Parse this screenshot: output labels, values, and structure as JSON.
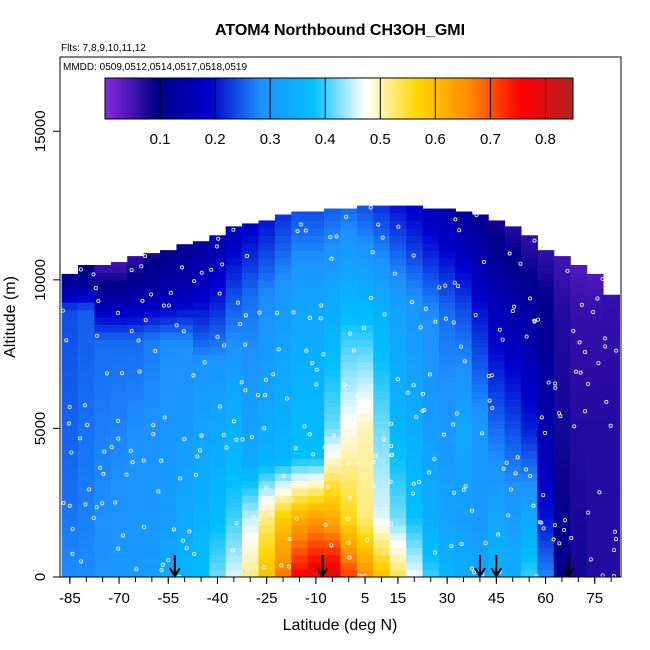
{
  "chart_data": {
    "type": "heatmap",
    "title": "ATOM4 Northbound CH3OH_GMI",
    "annotations": {
      "flights": "Flts: 7,8,9,10,11,12",
      "dates": "MMDD: 0509,0512,0514,0517,0518,0519"
    },
    "xlabel": "Latitude (deg N)",
    "ylabel": "Altitude (m)",
    "xlim": [
      -88,
      83
    ],
    "ylim": [
      0,
      17500
    ],
    "x_ticks": [
      -85,
      -70,
      -55,
      -40,
      -25,
      -10,
      5,
      15,
      30,
      45,
      60,
      75
    ],
    "y_ticks": [
      0,
      5000,
      10000,
      15000
    ],
    "colorbar": {
      "range": [
        0.0,
        0.85
      ],
      "ticks": [
        0.1,
        0.2,
        0.3,
        0.4,
        0.5,
        0.6,
        0.7,
        0.8
      ],
      "colors": [
        "#8a2be2",
        "#00008b",
        "#0000cd",
        "#1e90ff",
        "#00bfff",
        "#ffffff",
        "#ffd700",
        "#ff8c00",
        "#ff0000",
        "#b22222"
      ]
    },
    "arrow_latitudes": [
      -53,
      -8,
      40,
      45,
      67
    ],
    "columns": [
      {
        "lat": -85,
        "top": 10200,
        "profile": [
          [
            0,
            0.28
          ],
          [
            3000,
            0.26
          ],
          [
            9000,
            0.24
          ],
          [
            10000,
            0.1
          ]
        ]
      },
      {
        "lat": -80,
        "top": 10500,
        "profile": [
          [
            0,
            0.28
          ],
          [
            3000,
            0.27
          ],
          [
            9000,
            0.25
          ],
          [
            10000,
            0.1
          ]
        ]
      },
      {
        "lat": -75,
        "top": 10500,
        "profile": [
          [
            0,
            0.29
          ],
          [
            3000,
            0.28
          ],
          [
            8000,
            0.26
          ],
          [
            9500,
            0.12
          ],
          [
            10500,
            0.05
          ]
        ]
      },
      {
        "lat": -70,
        "top": 10600,
        "profile": [
          [
            0,
            0.3
          ],
          [
            4000,
            0.28
          ],
          [
            8000,
            0.26
          ],
          [
            9500,
            0.12
          ],
          [
            10500,
            0.05
          ]
        ]
      },
      {
        "lat": -65,
        "top": 10800,
        "profile": [
          [
            0,
            0.3
          ],
          [
            4000,
            0.29
          ],
          [
            8000,
            0.26
          ],
          [
            9500,
            0.13
          ],
          [
            10800,
            0.06
          ]
        ]
      },
      {
        "lat": -60,
        "top": 10900,
        "profile": [
          [
            0,
            0.31
          ],
          [
            2000,
            0.3
          ],
          [
            8000,
            0.27
          ],
          [
            9500,
            0.14
          ],
          [
            10900,
            0.08
          ]
        ]
      },
      {
        "lat": -55,
        "top": 11000,
        "profile": [
          [
            0,
            0.33
          ],
          [
            2000,
            0.31
          ],
          [
            8000,
            0.28
          ],
          [
            9500,
            0.15
          ],
          [
            11000,
            0.09
          ]
        ]
      },
      {
        "lat": -50,
        "top": 11200,
        "profile": [
          [
            0,
            0.36
          ],
          [
            2000,
            0.33
          ],
          [
            8000,
            0.28
          ],
          [
            9500,
            0.16
          ],
          [
            11200,
            0.1
          ]
        ]
      },
      {
        "lat": -45,
        "top": 11300,
        "profile": [
          [
            0,
            0.38
          ],
          [
            2000,
            0.35
          ],
          [
            7000,
            0.3
          ],
          [
            9500,
            0.18
          ],
          [
            11300,
            0.12
          ]
        ]
      },
      {
        "lat": -40,
        "top": 11500,
        "profile": [
          [
            0,
            0.42
          ],
          [
            2000,
            0.37
          ],
          [
            7000,
            0.3
          ],
          [
            9500,
            0.2
          ],
          [
            11500,
            0.14
          ]
        ]
      },
      {
        "lat": -35,
        "top": 11800,
        "profile": [
          [
            0,
            0.46
          ],
          [
            2000,
            0.4
          ],
          [
            7000,
            0.31
          ],
          [
            9500,
            0.24
          ],
          [
            11800,
            0.16
          ]
        ]
      },
      {
        "lat": -30,
        "top": 11900,
        "profile": [
          [
            0,
            0.52
          ],
          [
            2000,
            0.45
          ],
          [
            4000,
            0.33
          ],
          [
            9500,
            0.26
          ],
          [
            11900,
            0.18
          ]
        ]
      },
      {
        "lat": -25,
        "top": 12000,
        "profile": [
          [
            0,
            0.6
          ],
          [
            2000,
            0.52
          ],
          [
            4000,
            0.35
          ],
          [
            9500,
            0.28
          ],
          [
            12000,
            0.2
          ]
        ]
      },
      {
        "lat": -20,
        "top": 12200,
        "profile": [
          [
            0,
            0.68
          ],
          [
            2000,
            0.58
          ],
          [
            4000,
            0.36
          ],
          [
            9500,
            0.3
          ],
          [
            12200,
            0.22
          ]
        ]
      },
      {
        "lat": -15,
        "top": 12300,
        "profile": [
          [
            0,
            0.76
          ],
          [
            2000,
            0.62
          ],
          [
            4000,
            0.38
          ],
          [
            9500,
            0.32
          ],
          [
            12300,
            0.24
          ]
        ]
      },
      {
        "lat": -10,
        "top": 12300,
        "profile": [
          [
            0,
            0.79
          ],
          [
            2000,
            0.64
          ],
          [
            4000,
            0.38
          ],
          [
            9500,
            0.32
          ],
          [
            12300,
            0.24
          ]
        ]
      },
      {
        "lat": -5,
        "top": 12400,
        "profile": [
          [
            0,
            0.8
          ],
          [
            2000,
            0.62
          ],
          [
            5000,
            0.42
          ],
          [
            9500,
            0.33
          ],
          [
            12400,
            0.25
          ]
        ]
      },
      {
        "lat": 0,
        "top": 12400,
        "profile": [
          [
            0,
            0.72
          ],
          [
            2000,
            0.56
          ],
          [
            5000,
            0.48
          ],
          [
            8000,
            0.4
          ],
          [
            12400,
            0.26
          ]
        ]
      },
      {
        "lat": 5,
        "top": 12500,
        "profile": [
          [
            0,
            0.66
          ],
          [
            2000,
            0.52
          ],
          [
            5000,
            0.5
          ],
          [
            8000,
            0.4
          ],
          [
            12500,
            0.24
          ]
        ]
      },
      {
        "lat": 10,
        "top": 12500,
        "profile": [
          [
            0,
            0.6
          ],
          [
            2000,
            0.46
          ],
          [
            5000,
            0.42
          ],
          [
            9000,
            0.35
          ],
          [
            12500,
            0.22
          ]
        ]
      },
      {
        "lat": 15,
        "top": 12500,
        "profile": [
          [
            0,
            0.54
          ],
          [
            2000,
            0.42
          ],
          [
            5000,
            0.36
          ],
          [
            9000,
            0.32
          ],
          [
            12500,
            0.2
          ]
        ]
      },
      {
        "lat": 20,
        "top": 12500,
        "profile": [
          [
            0,
            0.47
          ],
          [
            2000,
            0.38
          ],
          [
            5000,
            0.34
          ],
          [
            9000,
            0.3
          ],
          [
            12500,
            0.18
          ]
        ]
      },
      {
        "lat": 25,
        "top": 12400,
        "profile": [
          [
            0,
            0.4
          ],
          [
            2000,
            0.34
          ],
          [
            5000,
            0.31
          ],
          [
            9000,
            0.28
          ],
          [
            12400,
            0.16
          ]
        ]
      },
      {
        "lat": 30,
        "top": 12400,
        "profile": [
          [
            0,
            0.36
          ],
          [
            2000,
            0.32
          ],
          [
            5000,
            0.3
          ],
          [
            9000,
            0.26
          ],
          [
            12400,
            0.14
          ]
        ]
      },
      {
        "lat": 35,
        "top": 12300,
        "profile": [
          [
            0,
            0.34
          ],
          [
            2000,
            0.31
          ],
          [
            5000,
            0.33
          ],
          [
            9000,
            0.24
          ],
          [
            12300,
            0.12
          ]
        ]
      },
      {
        "lat": 40,
        "top": 12200,
        "profile": [
          [
            0,
            0.33
          ],
          [
            2000,
            0.3
          ],
          [
            5000,
            0.3
          ],
          [
            9000,
            0.2
          ],
          [
            12200,
            0.1
          ]
        ]
      },
      {
        "lat": 45,
        "top": 12000,
        "profile": [
          [
            0,
            0.36
          ],
          [
            2000,
            0.33
          ],
          [
            5000,
            0.26
          ],
          [
            9000,
            0.16
          ],
          [
            12000,
            0.08
          ]
        ]
      },
      {
        "lat": 50,
        "top": 11800,
        "profile": [
          [
            0,
            0.34
          ],
          [
            2000,
            0.31
          ],
          [
            5000,
            0.24
          ],
          [
            9000,
            0.14
          ],
          [
            11800,
            0.07
          ]
        ]
      },
      {
        "lat": 55,
        "top": 11500,
        "profile": [
          [
            0,
            0.4
          ],
          [
            2000,
            0.33
          ],
          [
            5000,
            0.21
          ],
          [
            9000,
            0.12
          ],
          [
            11500,
            0.06
          ]
        ]
      },
      {
        "lat": 60,
        "top": 11000,
        "profile": [
          [
            0,
            0.28
          ],
          [
            2000,
            0.2
          ],
          [
            5000,
            0.14
          ],
          [
            9000,
            0.1
          ],
          [
            11000,
            0.06
          ]
        ]
      },
      {
        "lat": 65,
        "top": 10800,
        "profile": [
          [
            0,
            0.1
          ],
          [
            5000,
            0.08
          ],
          [
            9000,
            0.07
          ],
          [
            10800,
            0.05
          ]
        ]
      },
      {
        "lat": 70,
        "top": 10500,
        "profile": [
          [
            0,
            0.08
          ],
          [
            5000,
            0.07
          ],
          [
            9000,
            0.06
          ],
          [
            10500,
            0.04
          ]
        ]
      },
      {
        "lat": 75,
        "top": 10200,
        "profile": [
          [
            0,
            0.07
          ],
          [
            5000,
            0.07
          ],
          [
            9000,
            0.06
          ],
          [
            10200,
            0.04
          ]
        ]
      },
      {
        "lat": 80,
        "top": 9500,
        "profile": [
          [
            0,
            0.07
          ],
          [
            5000,
            0.07
          ],
          [
            9500,
            0.06
          ]
        ]
      }
    ]
  }
}
